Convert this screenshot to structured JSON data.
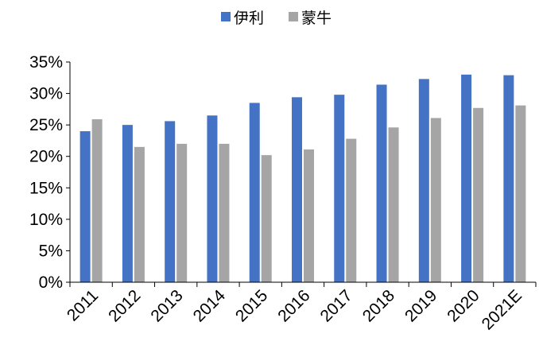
{
  "chart_data": {
    "type": "bar",
    "categories": [
      "2011",
      "2012",
      "2013",
      "2014",
      "2015",
      "2016",
      "2017",
      "2018",
      "2019",
      "2020",
      "2021E"
    ],
    "series": [
      {
        "name": "伊利",
        "color": "#4472C4",
        "values": [
          24.0,
          25.0,
          25.6,
          26.5,
          28.5,
          29.4,
          29.8,
          31.4,
          32.3,
          33.0,
          32.9
        ]
      },
      {
        "name": "蒙牛",
        "color": "#A5A5A5",
        "values": [
          25.9,
          21.5,
          22.0,
          22.0,
          20.2,
          21.1,
          22.8,
          24.6,
          26.1,
          27.7,
          28.1
        ]
      }
    ],
    "ylim": [
      0,
      35
    ],
    "yticks": [
      0,
      5,
      10,
      15,
      20,
      25,
      30,
      35
    ],
    "ytick_format": "%",
    "legend": "top-center",
    "grid": false
  }
}
